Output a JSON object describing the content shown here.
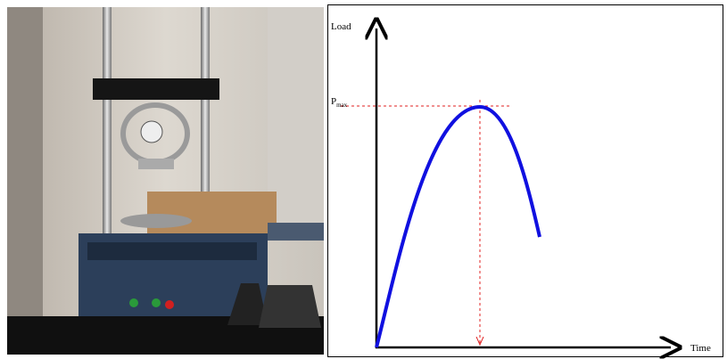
{
  "diagram": {
    "y_axis_label": "Load",
    "x_axis_label": "Time",
    "peak_label": {
      "main": "P",
      "sub": "max"
    }
  }
}
